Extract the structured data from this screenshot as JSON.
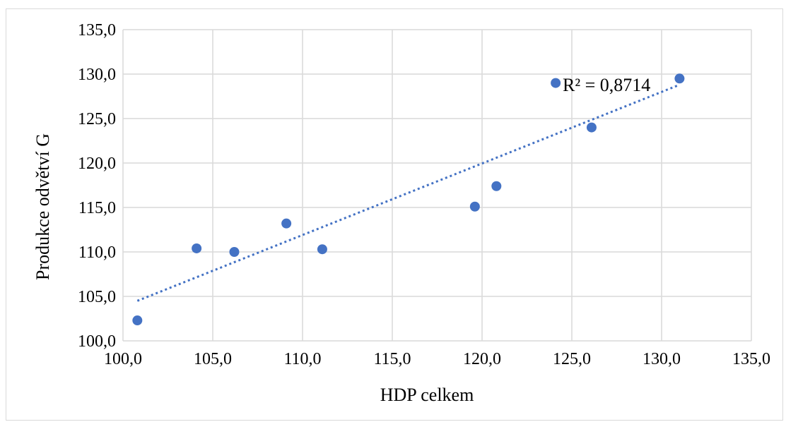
{
  "chart_data": {
    "type": "scatter",
    "title": "",
    "xlabel": "HDP celkem",
    "ylabel": "Produkce odvětví G",
    "xlim": [
      100,
      135
    ],
    "ylim": [
      100,
      135
    ],
    "x_ticks": [
      "100,0",
      "105,0",
      "110,0",
      "115,0",
      "120,0",
      "125,0",
      "130,0",
      "135,0"
    ],
    "y_ticks": [
      "100,0",
      "105,0",
      "110,0",
      "115,0",
      "120,0",
      "125,0",
      "130,0",
      "135,0"
    ],
    "grid": true,
    "legend": "none",
    "series": [
      {
        "color": "#4472c4",
        "points": [
          {
            "x": 100.8,
            "y": 102.3
          },
          {
            "x": 104.1,
            "y": 110.4
          },
          {
            "x": 106.2,
            "y": 110.0
          },
          {
            "x": 109.1,
            "y": 113.2
          },
          {
            "x": 111.1,
            "y": 110.3
          },
          {
            "x": 119.6,
            "y": 115.1
          },
          {
            "x": 120.8,
            "y": 117.4
          },
          {
            "x": 124.1,
            "y": 129.0
          },
          {
            "x": 126.1,
            "y": 124.0
          },
          {
            "x": 131.0,
            "y": 129.5
          }
        ]
      }
    ],
    "trendline": {
      "type": "linear",
      "style": "dotted",
      "color": "#4472c4",
      "x_start": 100.8,
      "x_end": 131.0,
      "y_start": 104.5,
      "y_end": 128.8,
      "annotation": "R² = 0,8714"
    }
  }
}
